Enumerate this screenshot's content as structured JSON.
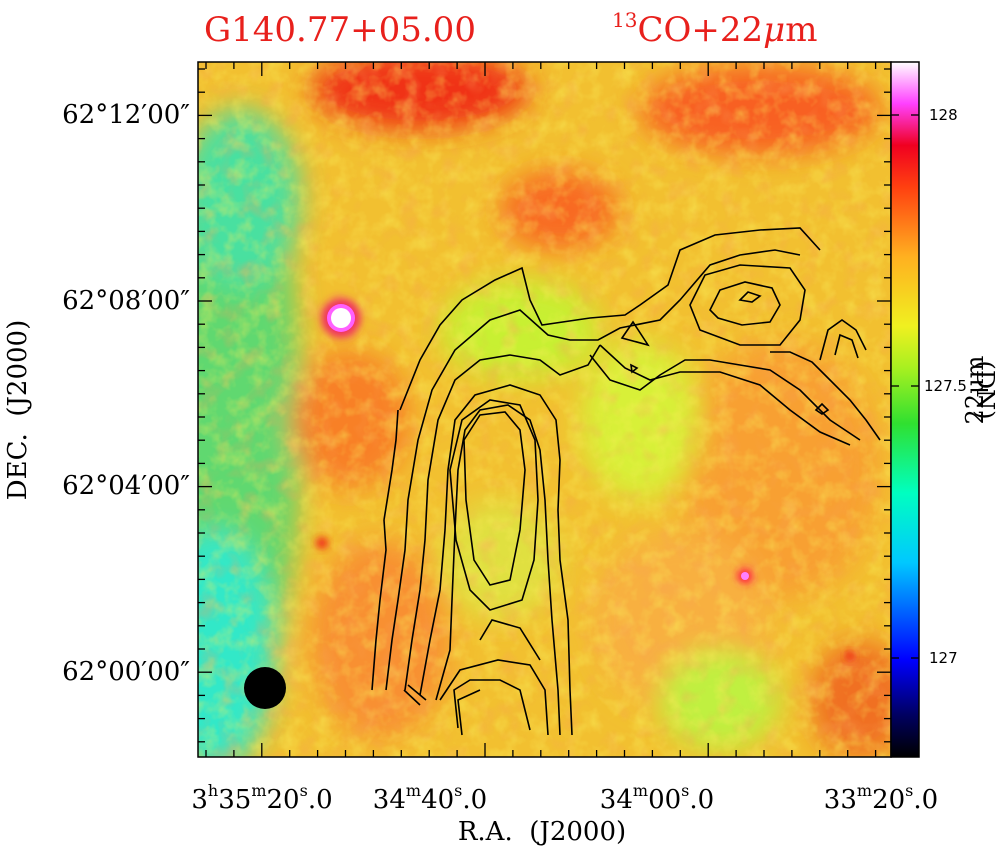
{
  "header": {
    "source_name": "G140.77+05.00",
    "overlay_label": {
      "sup": "13",
      "main": "CO+22",
      "mu": "μ",
      "unit": "m"
    }
  },
  "axes": {
    "x_label": "R.A.  (J2000)",
    "y_label": "DEC.  (J2000)",
    "x_ticks": [
      {
        "h": "3",
        "hsup": "h",
        "m": "35",
        "msup": "m",
        "s": "20",
        "ssup": "s",
        "frac": ".0"
      },
      {
        "m": "34",
        "msup": "m",
        "s": "40",
        "ssup": "s",
        "frac": ".0"
      },
      {
        "m": "34",
        "msup": "m",
        "s": "00",
        "ssup": "s",
        "frac": ".0"
      },
      {
        "m": "33",
        "msup": "m",
        "s": "20",
        "ssup": "s",
        "frac": ".0"
      }
    ],
    "y_ticks": [
      "62°12′00″",
      "62°08′00″",
      "62°04′00″",
      "62°00′00″"
    ]
  },
  "colorbar": {
    "label_main": "22μm",
    "label_unit": "(DN)",
    "ticks": [
      "128",
      "127.5",
      "127"
    ]
  },
  "colors": {
    "title": "#e8201c",
    "contour": "#000000",
    "background_map": "#f0b030"
  }
}
